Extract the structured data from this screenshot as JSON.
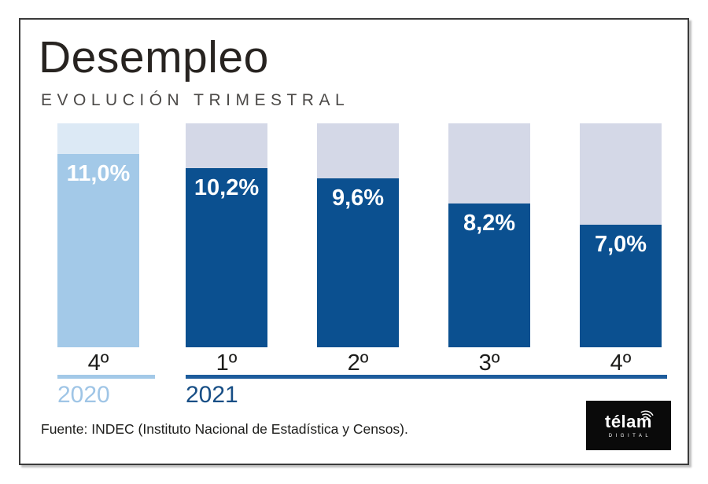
{
  "chart_data": {
    "type": "bar",
    "title": "Desempleo",
    "subtitle": "EVOLUCIÓN TRIMESTRAL",
    "categories": [
      "4º",
      "1º",
      "2º",
      "3º",
      "4º"
    ],
    "values": [
      11.0,
      10.2,
      9.6,
      8.2,
      7.0
    ],
    "value_labels": [
      "11,0%",
      "10,2%",
      "9,6%",
      "8,2%",
      "7,0%"
    ],
    "groups": [
      {
        "year": "2020",
        "bar_indexes": [
          0
        ]
      },
      {
        "year": "2021",
        "bar_indexes": [
          1,
          2,
          3,
          4
        ]
      }
    ],
    "ylim": [
      0,
      12.75
    ],
    "xlabel": "",
    "ylabel": "",
    "grid": false,
    "legend_position": "below-axis"
  },
  "colors": {
    "bar_2020_fill": "#a3c9e8",
    "bar_2020_cap": "#dce9f5",
    "bar_2021_fill": "#0b5090",
    "bar_2021_cap": "#d4d8e7",
    "line_2020": "#a3c9e8",
    "line_2021": "#1d5c9c",
    "year_2020_text": "#9fc5e6",
    "year_2021_text": "#174e85",
    "value_text": "#ffffff"
  },
  "years": [
    {
      "label": "2020"
    },
    {
      "label": "2021"
    }
  ],
  "source": "Fuente: INDEC (Instituto Nacional de Estadística y Censos).",
  "logo": {
    "name": "télam",
    "sub": "DIGITAL"
  }
}
